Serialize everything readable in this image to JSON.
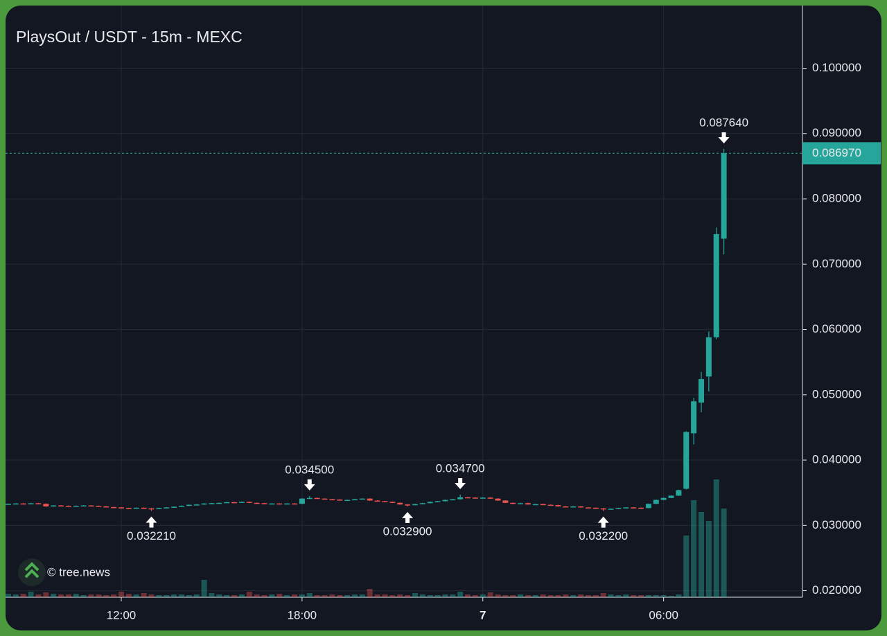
{
  "chart_data": {
    "type": "candlestick",
    "title": "PlaysOut / USDT - 15m - MEXC",
    "watermark": "© tree.news",
    "up_color": "#26a69a",
    "down_color": "#ef5350",
    "grid": true,
    "ylim": [
      0.019,
      0.1096
    ],
    "yticks": [
      {
        "value": 0.02,
        "label": "0.020000"
      },
      {
        "value": 0.03,
        "label": "0.030000"
      },
      {
        "value": 0.04,
        "label": "0.040000"
      },
      {
        "value": 0.05,
        "label": "0.050000"
      },
      {
        "value": 0.06,
        "label": "0.060000"
      },
      {
        "value": 0.07,
        "label": "0.070000"
      },
      {
        "value": 0.08,
        "label": "0.080000"
      },
      {
        "value": 0.09,
        "label": "0.090000"
      },
      {
        "value": 0.1,
        "label": "0.100000"
      }
    ],
    "xticks": [
      {
        "value": 15,
        "label": "12:00"
      },
      {
        "value": 39,
        "label": "18:00"
      },
      {
        "value": 63,
        "label": "7"
      },
      {
        "value": 87,
        "label": "06:00"
      }
    ],
    "open": [
      0.03325,
      0.0333,
      0.03335,
      0.03332,
      0.03338,
      0.0333,
      0.0329,
      0.03305,
      0.033,
      0.03295,
      0.033,
      0.03305,
      0.033,
      0.0329,
      0.0328,
      0.03275,
      0.03265,
      0.03262,
      0.0327,
      0.0326,
      0.03255,
      0.03265,
      0.03275,
      0.03285,
      0.033,
      0.03315,
      0.0332,
      0.03335,
      0.0334,
      0.03345,
      0.03355,
      0.0335,
      0.0336,
      0.03345,
      0.0334,
      0.0333,
      0.03335,
      0.03325,
      0.03335,
      0.0333,
      0.0341,
      0.0342,
      0.0341,
      0.034,
      0.03395,
      0.03385,
      0.0339,
      0.034,
      0.0341,
      0.0338,
      0.0337,
      0.0336,
      0.03345,
      0.0332,
      0.0331,
      0.03325,
      0.0334,
      0.0336,
      0.0337,
      0.0339,
      0.034,
      0.0343,
      0.03425,
      0.0342,
      0.03425,
      0.0341,
      0.0338,
      0.03345,
      0.0333,
      0.0334,
      0.0332,
      0.03325,
      0.03315,
      0.0331,
      0.0329,
      0.03285,
      0.0329,
      0.03275,
      0.0327,
      0.0326,
      0.03245,
      0.03255,
      0.03265,
      0.03275,
      0.0327,
      0.03265,
      0.0333,
      0.0339,
      0.0342,
      0.03455,
      0.0356,
      0.0441,
      0.0488,
      0.0528,
      0.0588,
      0.0739
    ],
    "high": [
      0.03335,
      0.0334,
      0.0334,
      0.03343,
      0.03343,
      0.03335,
      0.0331,
      0.0331,
      0.03305,
      0.03305,
      0.0331,
      0.0331,
      0.03305,
      0.03295,
      0.03285,
      0.0328,
      0.0327,
      0.03275,
      0.03275,
      0.03265,
      0.0327,
      0.0328,
      0.0329,
      0.03305,
      0.0332,
      0.03325,
      0.0334,
      0.03345,
      0.0335,
      0.0336,
      0.0336,
      0.03365,
      0.03365,
      0.0335,
      0.03345,
      0.0334,
      0.0334,
      0.0334,
      0.0334,
      0.03415,
      0.0345,
      0.03425,
      0.03415,
      0.03405,
      0.034,
      0.03395,
      0.03405,
      0.03415,
      0.03415,
      0.03385,
      0.03375,
      0.03365,
      0.0335,
      0.03325,
      0.0333,
      0.03345,
      0.03365,
      0.03375,
      0.03395,
      0.03405,
      0.0347,
      0.03435,
      0.0343,
      0.0343,
      0.0343,
      0.03415,
      0.03385,
      0.0335,
      0.03345,
      0.03345,
      0.0333,
      0.0333,
      0.0332,
      0.03315,
      0.03295,
      0.03295,
      0.03295,
      0.0328,
      0.03275,
      0.03265,
      0.0326,
      0.0327,
      0.0328,
      0.0328,
      0.03275,
      0.03335,
      0.03395,
      0.03425,
      0.0346,
      0.03545,
      0.0444,
      0.0495,
      0.0535,
      0.0597,
      0.0756,
      0.08764
    ],
    "low": [
      0.0332,
      0.03325,
      0.03327,
      0.03327,
      0.03325,
      0.03285,
      0.03285,
      0.03295,
      0.0329,
      0.0329,
      0.03295,
      0.03295,
      0.03285,
      0.03275,
      0.0327,
      0.0326,
      0.03257,
      0.03257,
      0.03255,
      0.03221,
      0.0325,
      0.0326,
      0.0327,
      0.0328,
      0.03295,
      0.0331,
      0.03315,
      0.0333,
      0.03335,
      0.0334,
      0.03345,
      0.03345,
      0.0334,
      0.03335,
      0.03325,
      0.03325,
      0.0332,
      0.0332,
      0.03325,
      0.03325,
      0.03405,
      0.03405,
      0.03395,
      0.0339,
      0.0338,
      0.0338,
      0.03385,
      0.03395,
      0.03375,
      0.03365,
      0.03355,
      0.0334,
      0.03315,
      0.0329,
      0.03305,
      0.0332,
      0.03335,
      0.03355,
      0.03365,
      0.03385,
      0.03395,
      0.0342,
      0.03415,
      0.03415,
      0.03405,
      0.03375,
      0.0334,
      0.03325,
      0.03325,
      0.03315,
      0.03315,
      0.0331,
      0.03305,
      0.03285,
      0.0328,
      0.0328,
      0.0327,
      0.03265,
      0.03255,
      0.0322,
      0.0324,
      0.0325,
      0.0326,
      0.03265,
      0.0326,
      0.0326,
      0.03325,
      0.03385,
      0.03415,
      0.0345,
      0.0355,
      0.0424,
      0.0473,
      0.0505,
      0.0585,
      0.0715
    ],
    "close": [
      0.0333,
      0.03335,
      0.03332,
      0.03338,
      0.0333,
      0.0329,
      0.03305,
      0.033,
      0.03295,
      0.033,
      0.03305,
      0.033,
      0.0329,
      0.0328,
      0.03275,
      0.03265,
      0.03262,
      0.0327,
      0.0326,
      0.03255,
      0.03265,
      0.03275,
      0.03285,
      0.033,
      0.03315,
      0.0332,
      0.03335,
      0.0334,
      0.03345,
      0.03355,
      0.0335,
      0.0336,
      0.03345,
      0.0334,
      0.0333,
      0.03335,
      0.03325,
      0.03335,
      0.0333,
      0.0341,
      0.0342,
      0.0341,
      0.034,
      0.03395,
      0.03385,
      0.0339,
      0.034,
      0.0341,
      0.0338,
      0.0337,
      0.0336,
      0.03345,
      0.0332,
      0.0331,
      0.03325,
      0.0334,
      0.0336,
      0.0337,
      0.0339,
      0.034,
      0.0343,
      0.03425,
      0.0342,
      0.03425,
      0.0341,
      0.0338,
      0.03345,
      0.0333,
      0.0334,
      0.0332,
      0.03325,
      0.03315,
      0.0331,
      0.0329,
      0.03285,
      0.0329,
      0.03275,
      0.0327,
      0.0326,
      0.03245,
      0.03255,
      0.03265,
      0.03275,
      0.0327,
      0.03265,
      0.0333,
      0.0339,
      0.0342,
      0.03455,
      0.0354,
      0.0443,
      0.049,
      0.0524,
      0.0588,
      0.0746,
      0.08697
    ],
    "volume": [
      5,
      4,
      5,
      8,
      4,
      7,
      5,
      4,
      4,
      5,
      3,
      4,
      4,
      3,
      4,
      8,
      5,
      4,
      6,
      4,
      3,
      3,
      4,
      4,
      3,
      4,
      25,
      6,
      4,
      3,
      3,
      4,
      8,
      4,
      3,
      4,
      5,
      3,
      4,
      4,
      6,
      3,
      3,
      4,
      3,
      3,
      4,
      4,
      12,
      4,
      4,
      3,
      4,
      3,
      6,
      4,
      3,
      3,
      4,
      4,
      8,
      4,
      3,
      4,
      7,
      4,
      3,
      3,
      4,
      3,
      3,
      4,
      3,
      3,
      4,
      3,
      4,
      3,
      3,
      6,
      4,
      3,
      4,
      3,
      3,
      3,
      3,
      3,
      2,
      4,
      89,
      140,
      123,
      110,
      170,
      128
    ],
    "annotations": [
      {
        "index": 19,
        "value": 0.03221,
        "label": "0.032210",
        "direction": "up"
      },
      {
        "index": 40,
        "value": 0.0345,
        "label": "0.034500",
        "direction": "down"
      },
      {
        "index": 53,
        "value": 0.0329,
        "label": "0.032900",
        "direction": "up"
      },
      {
        "index": 60,
        "value": 0.0347,
        "label": "0.034700",
        "direction": "down"
      },
      {
        "index": 79,
        "value": 0.0322,
        "label": "0.032200",
        "direction": "up"
      },
      {
        "index": 95,
        "value": 0.08764,
        "label": "0.087640",
        "direction": "down"
      }
    ],
    "last_price": {
      "value": 0.08697,
      "label": "0.086970"
    }
  }
}
